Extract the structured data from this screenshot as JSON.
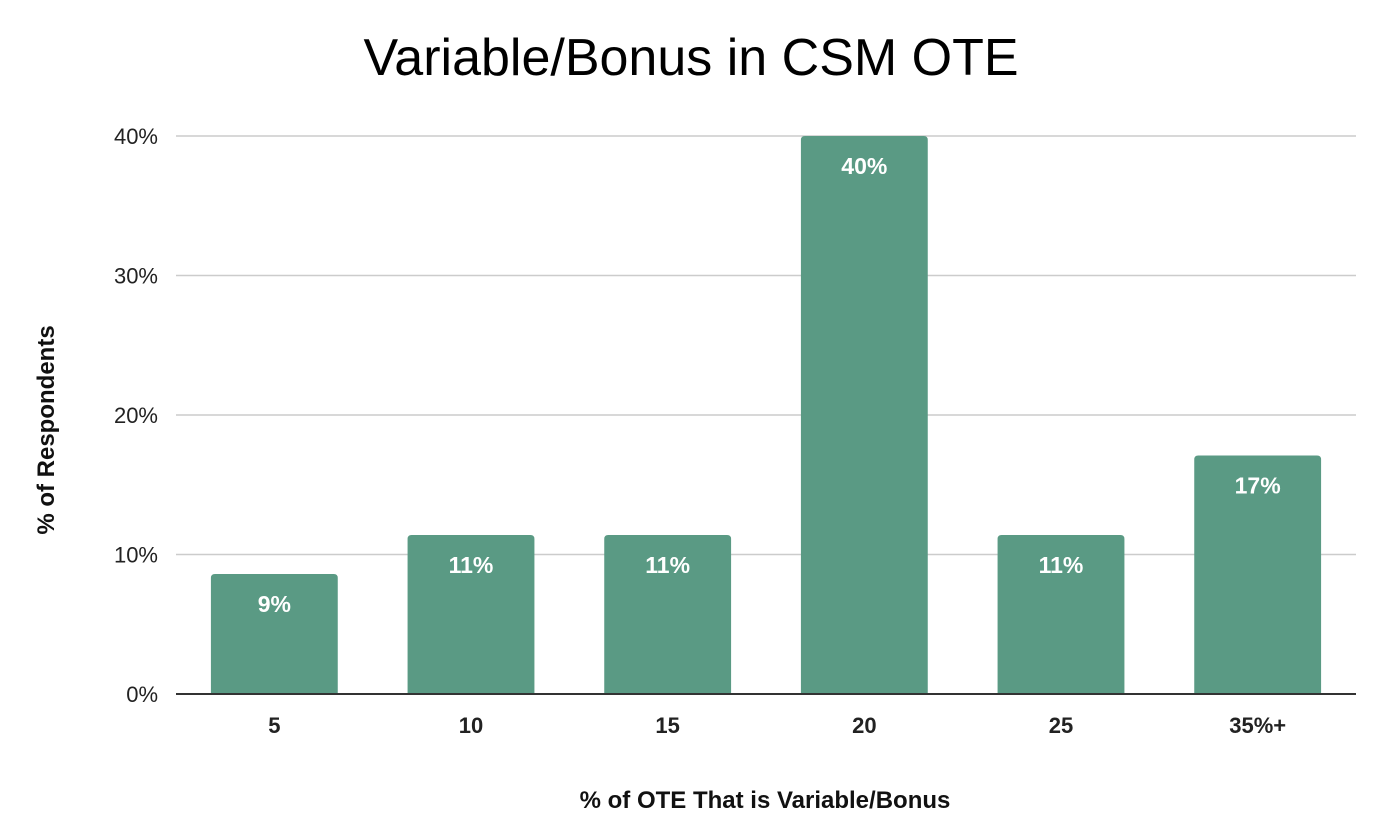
{
  "chart_data": {
    "type": "bar",
    "title": "Variable/Bonus in CSM OTE",
    "xlabel": "% of OTE That is Variable/Bonus",
    "ylabel": "% of Respondents",
    "categories": [
      "5",
      "10",
      "15",
      "20",
      "25",
      "35%+"
    ],
    "values": [
      8.6,
      11.4,
      11.4,
      40,
      11.4,
      17.1
    ],
    "data_labels": [
      "9%",
      "11%",
      "11%",
      "40%",
      "11%",
      "17%"
    ],
    "ylim": [
      0,
      40
    ],
    "yticks": [
      0,
      10,
      20,
      30,
      40
    ],
    "ytick_labels": [
      "0%",
      "10%",
      "20%",
      "30%",
      "40%"
    ],
    "grid": true,
    "legend": "none",
    "colors": {
      "bar": "#5a9a84",
      "grid": "#cccccc",
      "axis": "#333333"
    }
  }
}
